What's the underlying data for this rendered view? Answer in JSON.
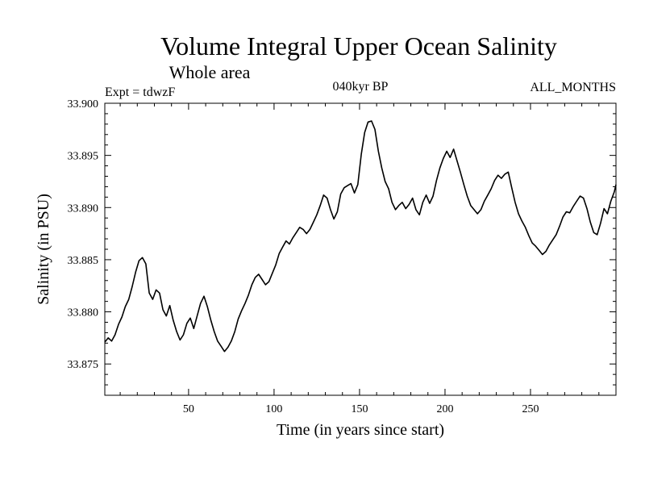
{
  "chart_data": {
    "type": "line",
    "title": "Volume Integral Upper Ocean Salinity",
    "subtitle": "Whole area",
    "annotations": {
      "left": "Expt = tdwzF",
      "center": "040kyr BP",
      "right": "ALL_MONTHS"
    },
    "xlabel": "Time (in years since start)",
    "ylabel": "Salinity (in PSU)",
    "xlim": [
      1,
      300
    ],
    "ylim": [
      33.872,
      33.9
    ],
    "xticks": [
      50,
      100,
      150,
      200,
      250
    ],
    "yticks": [
      33.875,
      33.88,
      33.885,
      33.89,
      33.895,
      33.9
    ],
    "ytick_labels": [
      "33.875",
      "33.880",
      "33.885",
      "33.890",
      "33.895",
      "33.900"
    ],
    "grid": false,
    "series": [
      {
        "color": "#000000",
        "x": [
          1,
          3,
          5,
          7,
          9,
          11,
          13,
          15,
          17,
          19,
          21,
          23,
          25,
          27,
          29,
          31,
          33,
          35,
          37,
          39,
          41,
          43,
          45,
          47,
          49,
          51,
          53,
          55,
          57,
          59,
          61,
          63,
          65,
          67,
          69,
          71,
          73,
          75,
          77,
          79,
          81,
          83,
          85,
          87,
          89,
          91,
          93,
          95,
          97,
          99,
          101,
          103,
          105,
          107,
          109,
          111,
          113,
          115,
          117,
          119,
          121,
          123,
          125,
          127,
          129,
          131,
          133,
          135,
          137,
          139,
          141,
          143,
          145,
          147,
          149,
          151,
          153,
          155,
          157,
          159,
          161,
          163,
          165,
          167,
          169,
          171,
          173,
          175,
          177,
          179,
          181,
          183,
          185,
          187,
          189,
          191,
          193,
          195,
          197,
          199,
          201,
          203,
          205,
          207,
          209,
          211,
          213,
          215,
          217,
          219,
          221,
          223,
          225,
          227,
          229,
          231,
          233,
          235,
          237,
          239,
          241,
          243,
          245,
          247,
          249,
          251,
          253,
          255,
          257,
          259,
          261,
          263,
          265,
          267,
          269,
          271,
          273,
          275,
          277,
          279,
          281,
          283,
          285,
          287,
          289,
          291,
          293,
          295,
          297,
          299,
          300
        ],
        "values": [
          33.8771,
          33.8775,
          33.8772,
          33.8778,
          33.8788,
          33.8795,
          33.8805,
          33.8812,
          33.8824,
          33.8838,
          33.8849,
          33.8852,
          33.8846,
          33.8818,
          33.8812,
          33.8821,
          33.8818,
          33.8802,
          33.8796,
          33.8806,
          33.8792,
          33.8781,
          33.8773,
          33.8778,
          33.8789,
          33.8794,
          33.8784,
          33.8796,
          33.8808,
          33.8815,
          33.8805,
          33.8792,
          33.8781,
          33.8772,
          33.8767,
          33.8762,
          33.8766,
          33.8772,
          33.8781,
          33.8793,
          33.8801,
          33.8808,
          33.8816,
          33.8826,
          33.8833,
          33.8836,
          33.8831,
          33.8826,
          33.8829,
          33.8837,
          33.8845,
          33.8856,
          33.8862,
          33.8868,
          33.8865,
          33.8871,
          33.8876,
          33.8881,
          33.8879,
          33.8875,
          33.8879,
          33.8886,
          33.8893,
          33.8902,
          33.8912,
          33.8909,
          33.8898,
          33.8889,
          33.8896,
          33.8913,
          33.8919,
          33.8921,
          33.8923,
          33.8914,
          33.8922,
          33.8951,
          33.8972,
          33.8982,
          33.8983,
          33.8975,
          33.8954,
          33.8938,
          33.8925,
          33.8918,
          33.8905,
          33.8898,
          33.8902,
          33.8905,
          33.8899,
          33.8903,
          33.8909,
          33.8898,
          33.8893,
          33.8905,
          33.8912,
          33.8904,
          33.8911,
          33.8926,
          33.8938,
          33.8947,
          33.8954,
          33.8948,
          33.8956,
          33.8945,
          33.8934,
          33.8922,
          33.8911,
          33.8902,
          33.8898,
          33.8894,
          33.8898,
          33.8906,
          33.8912,
          33.8918,
          33.8926,
          33.8931,
          33.8928,
          33.8932,
          33.8934,
          33.8919,
          33.8905,
          33.8894,
          33.8887,
          33.8881,
          33.8873,
          33.8866,
          33.8863,
          33.8859,
          33.8855,
          33.8858,
          33.8864,
          33.8869,
          33.8874,
          33.8882,
          33.8891,
          33.8896,
          33.8895,
          33.8901,
          33.8906,
          33.8911,
          33.8909,
          33.8899,
          33.8886,
          33.8876,
          33.8874,
          33.8885,
          33.8899,
          33.8894,
          33.8906,
          33.8915,
          33.8922
        ]
      }
    ]
  }
}
